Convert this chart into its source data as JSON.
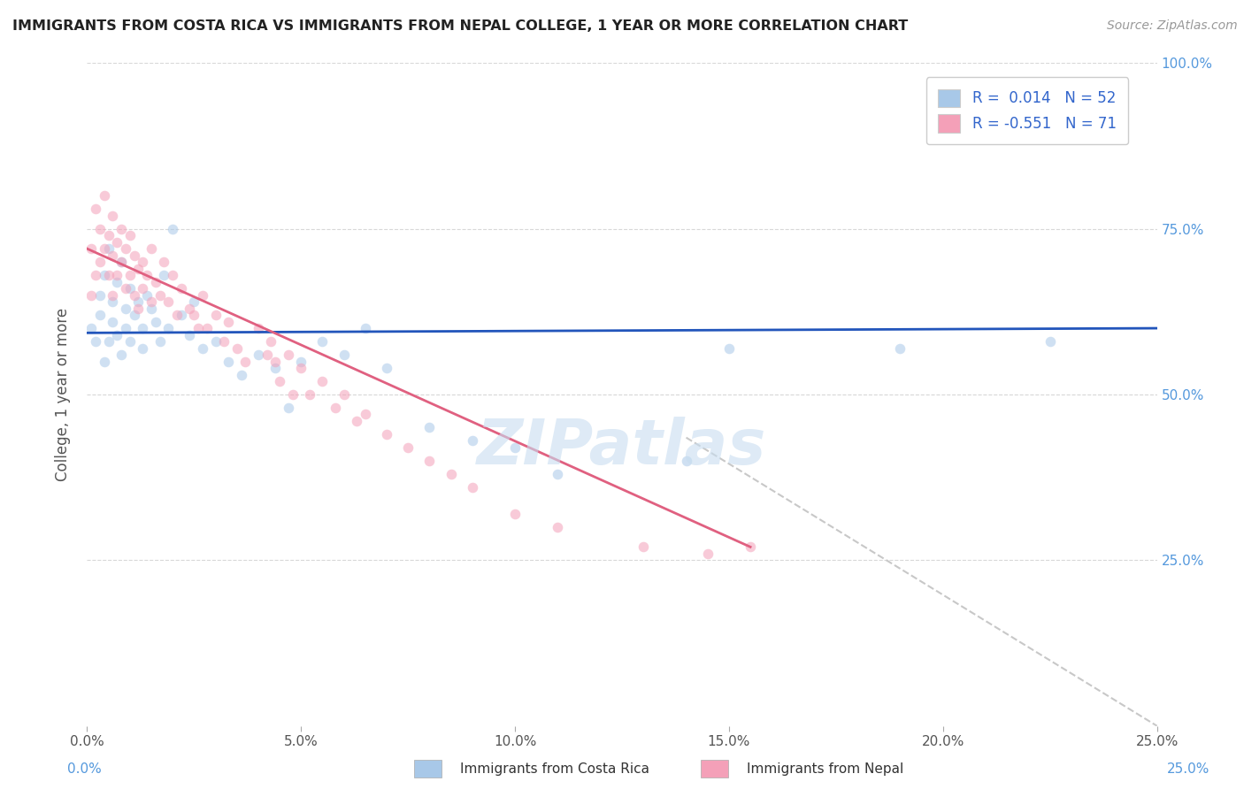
{
  "title": "IMMIGRANTS FROM COSTA RICA VS IMMIGRANTS FROM NEPAL COLLEGE, 1 YEAR OR MORE CORRELATION CHART",
  "source_text": "Source: ZipAtlas.com",
  "ylabel": "College, 1 year or more",
  "xlabel_blue": "Immigrants from Costa Rica",
  "xlabel_pink": "Immigrants from Nepal",
  "legend_blue_r": "R =  0.014",
  "legend_blue_n": "N = 52",
  "legend_pink_r": "R = -0.551",
  "legend_pink_n": "N = 71",
  "xlim": [
    0.0,
    0.25
  ],
  "ylim": [
    0.0,
    1.0
  ],
  "right_yticks": [
    0.25,
    0.5,
    0.75,
    1.0
  ],
  "right_yticklabels": [
    "25.0%",
    "50.0%",
    "75.0%",
    "100.0%"
  ],
  "xticks": [
    0.0,
    0.05,
    0.1,
    0.15,
    0.2,
    0.25
  ],
  "xticklabels": [
    "0.0%",
    "5.0%",
    "10.0%",
    "15.0%",
    "20.0%",
    "25.0%"
  ],
  "blue_color": "#a8c8e8",
  "pink_color": "#f4a0b8",
  "blue_line_color": "#2255bb",
  "pink_line_color": "#e06080",
  "diag_line_color": "#c8c8c8",
  "watermark": "ZIPatlas",
  "blue_scatter_x": [
    0.001,
    0.002,
    0.003,
    0.003,
    0.004,
    0.004,
    0.005,
    0.005,
    0.006,
    0.006,
    0.007,
    0.007,
    0.008,
    0.008,
    0.009,
    0.009,
    0.01,
    0.01,
    0.011,
    0.012,
    0.013,
    0.013,
    0.014,
    0.015,
    0.016,
    0.017,
    0.018,
    0.019,
    0.02,
    0.022,
    0.024,
    0.025,
    0.027,
    0.03,
    0.033,
    0.036,
    0.04,
    0.044,
    0.047,
    0.05,
    0.055,
    0.06,
    0.065,
    0.07,
    0.08,
    0.09,
    0.1,
    0.11,
    0.14,
    0.15,
    0.19,
    0.225
  ],
  "blue_scatter_y": [
    0.6,
    0.58,
    0.65,
    0.62,
    0.68,
    0.55,
    0.72,
    0.58,
    0.64,
    0.61,
    0.67,
    0.59,
    0.7,
    0.56,
    0.63,
    0.6,
    0.66,
    0.58,
    0.62,
    0.64,
    0.6,
    0.57,
    0.65,
    0.63,
    0.61,
    0.58,
    0.68,
    0.6,
    0.75,
    0.62,
    0.59,
    0.64,
    0.57,
    0.58,
    0.55,
    0.53,
    0.56,
    0.54,
    0.48,
    0.55,
    0.58,
    0.56,
    0.6,
    0.54,
    0.45,
    0.43,
    0.42,
    0.38,
    0.4,
    0.57,
    0.57,
    0.58
  ],
  "pink_scatter_x": [
    0.001,
    0.001,
    0.002,
    0.002,
    0.003,
    0.003,
    0.004,
    0.004,
    0.005,
    0.005,
    0.006,
    0.006,
    0.006,
    0.007,
    0.007,
    0.008,
    0.008,
    0.009,
    0.009,
    0.01,
    0.01,
    0.011,
    0.011,
    0.012,
    0.012,
    0.013,
    0.013,
    0.014,
    0.015,
    0.015,
    0.016,
    0.017,
    0.018,
    0.019,
    0.02,
    0.021,
    0.022,
    0.024,
    0.025,
    0.026,
    0.027,
    0.028,
    0.03,
    0.032,
    0.033,
    0.035,
    0.037,
    0.04,
    0.042,
    0.043,
    0.044,
    0.045,
    0.047,
    0.048,
    0.05,
    0.052,
    0.055,
    0.058,
    0.06,
    0.063,
    0.065,
    0.07,
    0.075,
    0.08,
    0.085,
    0.09,
    0.1,
    0.11,
    0.13,
    0.145,
    0.155
  ],
  "pink_scatter_y": [
    0.72,
    0.65,
    0.78,
    0.68,
    0.75,
    0.7,
    0.8,
    0.72,
    0.74,
    0.68,
    0.77,
    0.71,
    0.65,
    0.73,
    0.68,
    0.75,
    0.7,
    0.72,
    0.66,
    0.74,
    0.68,
    0.71,
    0.65,
    0.69,
    0.63,
    0.7,
    0.66,
    0.68,
    0.72,
    0.64,
    0.67,
    0.65,
    0.7,
    0.64,
    0.68,
    0.62,
    0.66,
    0.63,
    0.62,
    0.6,
    0.65,
    0.6,
    0.62,
    0.58,
    0.61,
    0.57,
    0.55,
    0.6,
    0.56,
    0.58,
    0.55,
    0.52,
    0.56,
    0.5,
    0.54,
    0.5,
    0.52,
    0.48,
    0.5,
    0.46,
    0.47,
    0.44,
    0.42,
    0.4,
    0.38,
    0.36,
    0.32,
    0.3,
    0.27,
    0.26,
    0.27
  ],
  "blue_trendline_x": [
    0.0,
    0.25
  ],
  "blue_trendline_y": [
    0.593,
    0.6
  ],
  "pink_trendline_x": [
    0.0,
    0.155
  ],
  "pink_trendline_y": [
    0.72,
    0.27
  ],
  "diag_line_x": [
    0.14,
    0.25
  ],
  "diag_line_y": [
    0.435,
    0.0
  ],
  "background_color": "#ffffff",
  "grid_color": "#d8d8d8",
  "title_color": "#222222",
  "marker_size": 70,
  "marker_alpha": 0.55
}
